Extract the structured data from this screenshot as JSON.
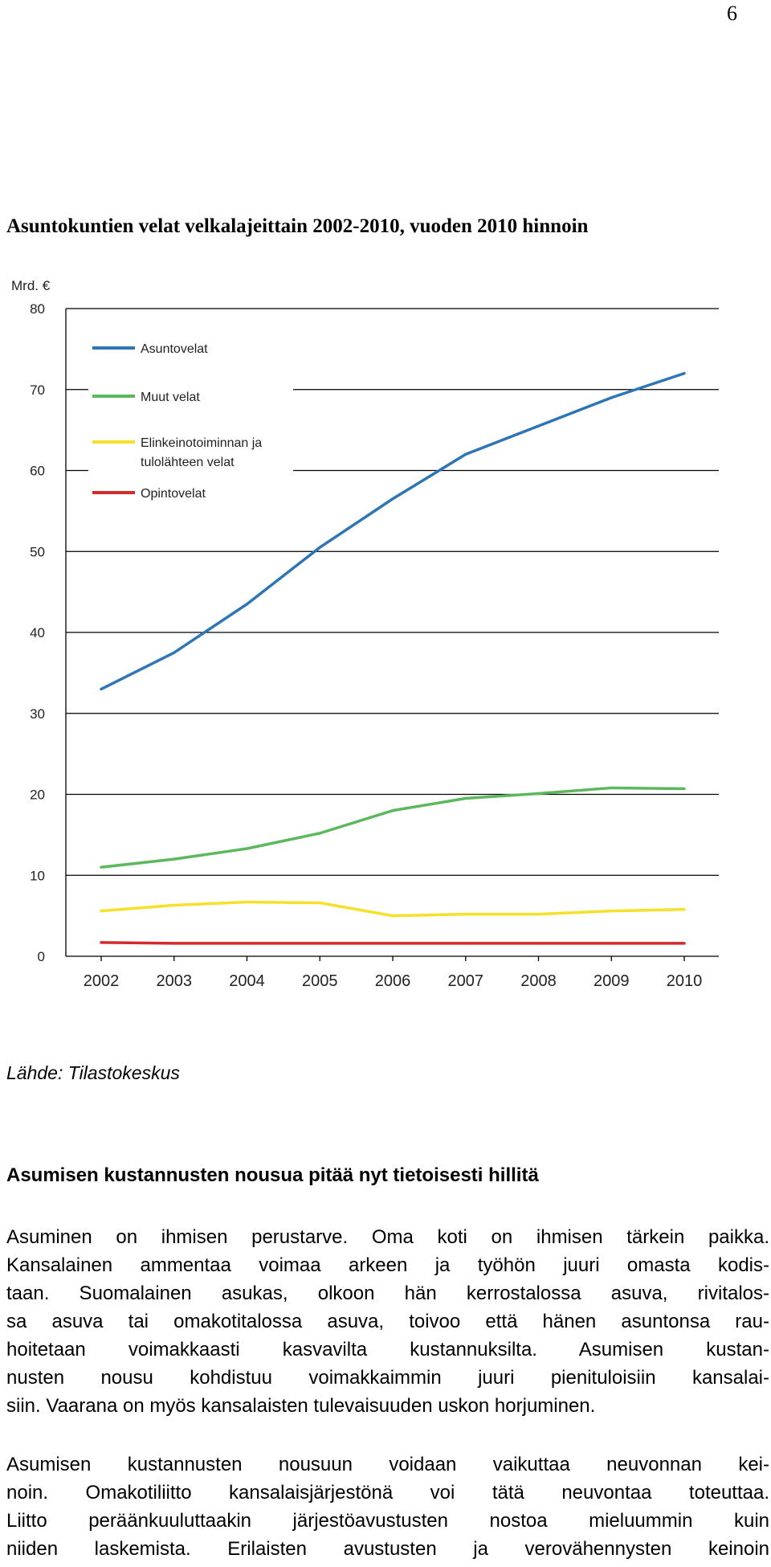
{
  "page": {
    "number": "6"
  },
  "figure": {
    "title": "Asuntokuntien velat velkalajeittain 2002-2010, vuoden 2010 hinnoin"
  },
  "chart_data": {
    "type": "line",
    "title": "Asuntokuntien velat velkalajeittain 2002-2010, vuoden 2010 hinnoin",
    "ylabel": "Mrd. €",
    "xlabel": "",
    "ylim": [
      0,
      80
    ],
    "yticks": [
      "0",
      "10",
      "20",
      "30",
      "40",
      "50",
      "60",
      "70",
      "80"
    ],
    "categories": [
      "2002",
      "2003",
      "2004",
      "2005",
      "2006",
      "2007",
      "2008",
      "2009",
      "2010"
    ],
    "series": [
      {
        "name": "Asuntovelat",
        "color": "#2e75b6",
        "values": [
          33.0,
          37.5,
          43.5,
          50.5,
          56.5,
          62.0,
          65.5,
          69.0,
          72.0
        ]
      },
      {
        "name": "Muut velat",
        "color": "#5cb85c",
        "values": [
          11.0,
          12.0,
          13.3,
          15.2,
          18.0,
          19.5,
          20.1,
          20.8,
          20.7
        ]
      },
      {
        "name": "Elinkeinotoiminnan ja tulolähteen velat",
        "color": "#f5e02a",
        "values": [
          5.6,
          6.3,
          6.7,
          6.6,
          5.0,
          5.2,
          5.2,
          5.6,
          5.8
        ]
      },
      {
        "name": "Opintovelat",
        "color": "#d62a2a",
        "values": [
          1.7,
          1.6,
          1.6,
          1.6,
          1.6,
          1.6,
          1.6,
          1.6,
          1.6
        ]
      }
    ],
    "legend": [
      {
        "lines": [
          "Asuntovelat"
        ],
        "color": "#2e75b6"
      },
      {
        "lines": [
          "Muut velat"
        ],
        "color": "#5cb85c"
      },
      {
        "lines": [
          "Elinkeinotoiminnan ja",
          "tulolähteen velat"
        ],
        "color": "#f5e02a"
      },
      {
        "lines": [
          "Opintovelat"
        ],
        "color": "#d62a2a"
      }
    ],
    "legend_position": "top-left",
    "grid": true
  },
  "source": {
    "text": "Lähde: Tilastokeskus"
  },
  "section": {
    "heading": "Asumisen kustannusten nousua pitää nyt tietoisesti hillitä",
    "paragraph1": [
      "Asuminen on ihmisen perustarve. Oma koti on ihmisen tärkein paikka.",
      "Kansalainen ammentaa voimaa arkeen ja työhön juuri omasta kodis-",
      "taan. Suomalainen asukas, olkoon hän kerrostalossa asuva, rivitalos-",
      "sa asuva tai omakotitalossa asuva, toivoo että hänen asuntonsa rau-",
      "hoitetaan voimakkaasti kasvavilta kustannuksilta. Asumisen kustan-",
      "nusten nousu kohdistuu voimakkaimmin juuri pienituloisiin kansalai-",
      "siin. Vaarana on myös kansalaisten tulevaisuuden uskon horjuminen."
    ],
    "paragraph2": [
      "Asumisen kustannusten nousuun voidaan vaikuttaa neuvonnan kei-",
      "noin. Omakotiliitto kansalaisjärjestönä voi tätä neuvontaa toteuttaa.",
      "Liitto peräänkuuluttaakin järjestöavustusten nostoa mieluummin kuin",
      "niiden laskemista. Erilaisten avustusten ja verovähennysten keinoin"
    ]
  }
}
